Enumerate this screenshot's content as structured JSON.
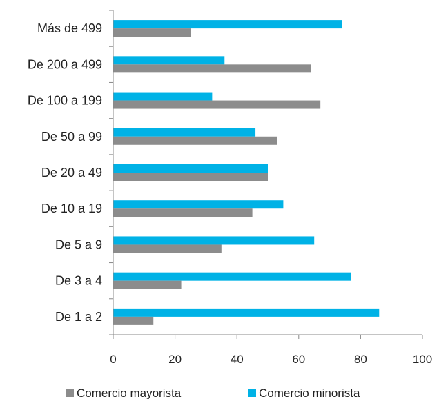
{
  "chart_data": {
    "type": "bar",
    "orientation": "horizontal",
    "categories": [
      "Más de 499",
      "De 200 a 499",
      "De 100 a 199",
      "De 50 a 99",
      "De 20 a 49",
      "De 10 a 19",
      "De 5 a 9",
      "De 3 a 4",
      "De 1 a 2"
    ],
    "series": [
      {
        "name": "Comercio minorista",
        "color": "#00b2e6",
        "values": [
          74,
          36,
          32,
          46,
          50,
          55,
          65,
          77,
          86
        ]
      },
      {
        "name": "Comercio mayorista",
        "color": "#8c8c8c",
        "values": [
          25,
          64,
          67,
          53,
          50,
          45,
          35,
          22,
          13
        ]
      }
    ],
    "xlim": [
      0,
      100
    ],
    "xticks": [
      0,
      20,
      40,
      60,
      80,
      100
    ],
    "grid": false,
    "legend": {
      "position": "bottom",
      "order": [
        "Comercio mayorista",
        "Comercio minorista"
      ]
    }
  }
}
